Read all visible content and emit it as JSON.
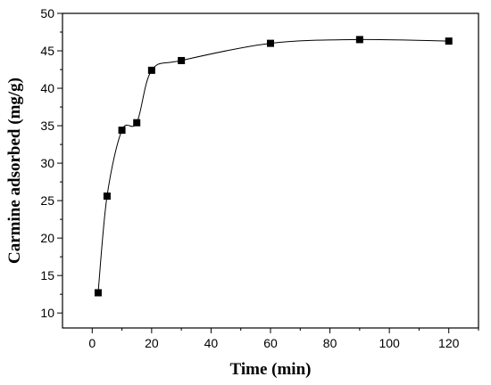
{
  "chart_data": {
    "type": "scatter",
    "xlabel": "Time (min)",
    "ylabel": "Carmine adsorbed (mg/g)",
    "xlim": [
      -10,
      130
    ],
    "ylim": [
      8,
      50
    ],
    "xticks": [
      0,
      20,
      40,
      60,
      80,
      100,
      120
    ],
    "yticks": [
      10,
      15,
      20,
      25,
      30,
      35,
      40,
      45,
      50
    ],
    "grid": false,
    "legend": "none",
    "series": [
      {
        "marker": "square",
        "color": "#000000",
        "fit_line": true,
        "points": [
          {
            "x": 2,
            "y": 12.7
          },
          {
            "x": 5,
            "y": 25.6
          },
          {
            "x": 10,
            "y": 34.4
          },
          {
            "x": 15,
            "y": 35.4
          },
          {
            "x": 20,
            "y": 42.4
          },
          {
            "x": 30,
            "y": 43.7
          },
          {
            "x": 60,
            "y": 46.0
          },
          {
            "x": 90,
            "y": 46.5
          },
          {
            "x": 120,
            "y": 46.3
          }
        ]
      }
    ]
  }
}
